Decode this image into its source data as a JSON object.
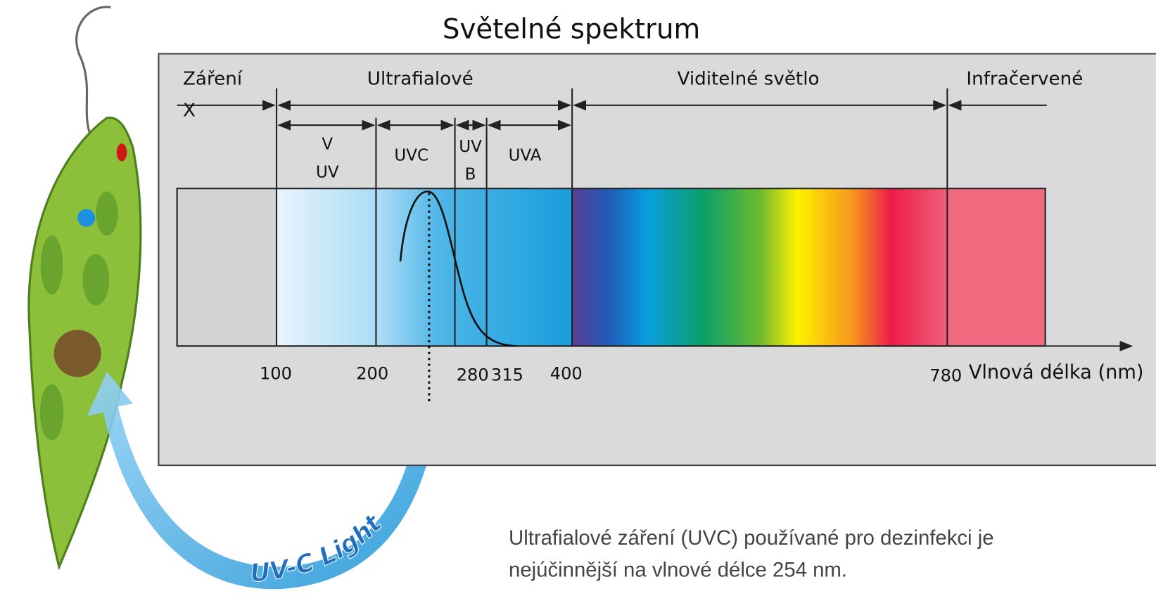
{
  "title": "Světelné spektrum",
  "regions": [
    {
      "lines": [
        "Záření",
        "X"
      ]
    },
    {
      "lines": [
        "Ultrafialové"
      ]
    },
    {
      "lines": [
        "Viditelné světlo"
      ]
    },
    {
      "lines": [
        "Infračervené"
      ]
    }
  ],
  "sub_bands": [
    {
      "lines": [
        "V",
        "UV"
      ]
    },
    {
      "lines": [
        "UVC"
      ]
    },
    {
      "lines": [
        "UV",
        "B"
      ]
    },
    {
      "lines": [
        "UVA"
      ]
    }
  ],
  "ticks": [
    100,
    200,
    280,
    315,
    400,
    780
  ],
  "axis_label": "Vlnová délka (nm)",
  "light_label": "UV-C Light",
  "caption": [
    "Ultrafialové záření (UVC) používané pro dezinfekci je",
    "nejúčinnější na vlnové délce 254 nm."
  ]
}
